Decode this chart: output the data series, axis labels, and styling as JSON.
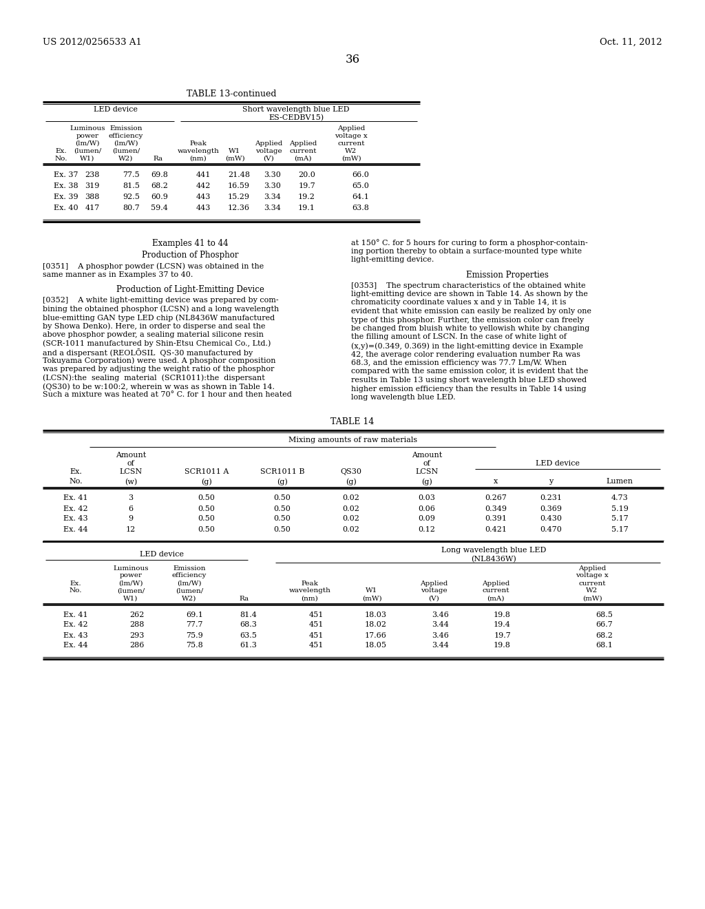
{
  "page_header_left": "US 2012/0256533 A1",
  "page_header_right": "Oct. 11, 2012",
  "page_number": "36",
  "table13_title": "TABLE 13-continued",
  "table13_data": [
    [
      "Ex. 37",
      "238",
      "77.5",
      "69.8",
      "441",
      "21.48",
      "3.30",
      "20.0",
      "66.0"
    ],
    [
      "Ex. 38",
      "319",
      "81.5",
      "68.2",
      "442",
      "16.59",
      "3.30",
      "19.7",
      "65.0"
    ],
    [
      "Ex. 39",
      "388",
      "92.5",
      "60.9",
      "443",
      "15.29",
      "3.34",
      "19.2",
      "64.1"
    ],
    [
      "Ex. 40",
      "417",
      "80.7",
      "59.4",
      "443",
      "12.36",
      "3.34",
      "19.1",
      "63.8"
    ]
  ],
  "table14_title": "TABLE 14",
  "table14_data": [
    [
      "Ex. 41",
      "3",
      "0.50",
      "0.50",
      "0.02",
      "0.03",
      "0.267",
      "0.231",
      "4.73"
    ],
    [
      "Ex. 42",
      "6",
      "0.50",
      "0.50",
      "0.02",
      "0.06",
      "0.349",
      "0.369",
      "5.19"
    ],
    [
      "Ex. 43",
      "9",
      "0.50",
      "0.50",
      "0.02",
      "0.09",
      "0.391",
      "0.430",
      "5.17"
    ],
    [
      "Ex. 44",
      "12",
      "0.50",
      "0.50",
      "0.02",
      "0.12",
      "0.421",
      "0.470",
      "5.17"
    ]
  ],
  "table14_led_data": [
    [
      "262",
      "69.1",
      "81.4",
      "451",
      "18.03",
      "3.46",
      "19.8",
      "68.5"
    ],
    [
      "288",
      "77.7",
      "68.3",
      "451",
      "18.02",
      "3.44",
      "19.4",
      "66.7"
    ],
    [
      "293",
      "75.9",
      "63.5",
      "451",
      "17.66",
      "3.46",
      "19.7",
      "68.2"
    ],
    [
      "286",
      "75.8",
      "61.3",
      "451",
      "18.05",
      "3.44",
      "19.8",
      "68.1"
    ]
  ],
  "left_para351": [
    "[0351]    A phosphor powder (LCSN) was obtained in the",
    "same manner as in Examples 37 to 40."
  ],
  "left_para352": [
    "[0352]    A white light-emitting device was prepared by com-",
    "bining the obtained phosphor (LCSN) and a long wavelength",
    "blue-emitting GAN type LED chip (NL8436W manufactured",
    "by Showa Denko). Here, in order to disperse and seal the",
    "above phosphor powder, a sealing material silicone resin",
    "(SCR-1011 manufactured by Shin-Etsu Chemical Co., Ltd.)",
    "and a dispersant (REOLŌSIL  QS-30 manufactured by",
    "Tokuyama Corporation) were used. A phosphor composition",
    "was prepared by adjusting the weight ratio of the phosphor",
    "(LCSN):the  sealing  material  (SCR1011):the  dispersant",
    "(QS30) to be w:100:2, wherein w was as shown in Table 14.",
    "Such a mixture was heated at 70° C. for 1 hour and then heated"
  ],
  "right_para_top": [
    "at 150° C. for 5 hours for curing to form a phosphor-contain-",
    "ing portion thereby to obtain a surface-mounted type white",
    "light-emitting device."
  ],
  "right_para353": [
    "[0353]    The spectrum characteristics of the obtained white",
    "light-emitting device are shown in Table 14. As shown by the",
    "chromaticity coordinate values x and y in Table 14, it is",
    "evident that white emission can easily be realized by only one",
    "type of this phosphor. Further, the emission color can freely",
    "be changed from bluish white to yellowish white by changing",
    "the filling amount of LSCN. In the case of white light of",
    "(x,y)=(0.349, 0.369) in the light-emitting device in Example",
    "42, the average color rendering evaluation number Ra was",
    "68.3, and the emission efficiency was 77.7 Lm/W. When",
    "compared with the same emission color, it is evident that the",
    "results in Table 13 using short wavelength blue LED showed",
    "higher emission efficiency than the results in Table 14 using",
    "long wavelength blue LED."
  ]
}
